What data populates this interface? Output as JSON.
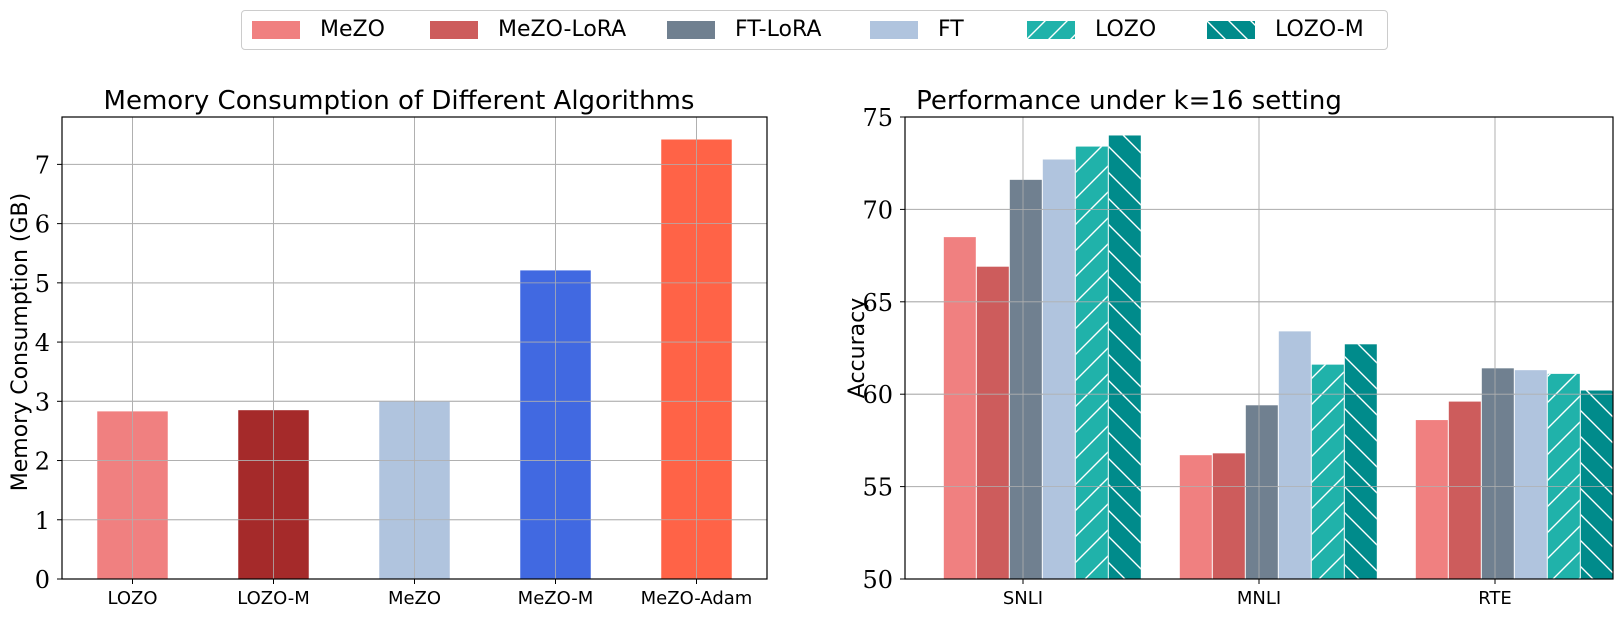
{
  "legend": {
    "entries": [
      {
        "label": "MeZO",
        "color": "#F08080",
        "hatch": "none"
      },
      {
        "label": "MeZO-LoRA",
        "color": "#CD5C5C",
        "hatch": "none"
      },
      {
        "label": "FT-LoRA",
        "color": "#708090",
        "hatch": "none"
      },
      {
        "label": "FT",
        "color": "#B0C4DE",
        "hatch": "none"
      },
      {
        "label": "LOZO",
        "color": "#20B2AA",
        "hatch": "forward-slash"
      },
      {
        "label": "LOZO-M",
        "color": "#008B8B",
        "hatch": "back-slash"
      }
    ]
  },
  "chart_data": [
    {
      "type": "bar",
      "title": "Memory Consumption of Different Algorithms",
      "xlabel": "",
      "ylabel": "Memory Consumption (GB)",
      "categories": [
        "LOZO",
        "LOZO-M",
        "MeZO",
        "MeZO-M",
        "MeZO-Adam"
      ],
      "values": [
        2.83,
        2.85,
        3.0,
        5.21,
        7.42
      ],
      "colors": [
        "#F08080",
        "#A52A2A",
        "#B0C4DE",
        "#4169E1",
        "#FF6347"
      ],
      "ylim": [
        0,
        7.8
      ],
      "yticks": [
        "0",
        "1",
        "2",
        "3",
        "4",
        "5",
        "6",
        "7"
      ],
      "grid": true
    },
    {
      "type": "bar",
      "title": "Performance under k=16 setting",
      "xlabel": "",
      "ylabel": "Accuracy",
      "categories": [
        "SNLI",
        "MNLI",
        "RTE"
      ],
      "series": [
        {
          "name": "MeZO",
          "values": [
            68.5,
            56.7,
            58.6
          ]
        },
        {
          "name": "MeZO-LoRA",
          "values": [
            66.9,
            56.8,
            59.6
          ]
        },
        {
          "name": "FT-LoRA",
          "values": [
            71.6,
            59.4,
            61.4
          ]
        },
        {
          "name": "FT",
          "values": [
            72.7,
            63.4,
            61.3
          ]
        },
        {
          "name": "LOZO",
          "values": [
            73.4,
            61.6,
            61.1
          ]
        },
        {
          "name": "LOZO-M",
          "values": [
            74.0,
            62.7,
            60.2
          ]
        }
      ],
      "ylim": [
        50,
        75
      ],
      "yticks": [
        "50",
        "55",
        "60",
        "65",
        "70",
        "75"
      ],
      "grid": true,
      "legend": "top-center"
    }
  ]
}
